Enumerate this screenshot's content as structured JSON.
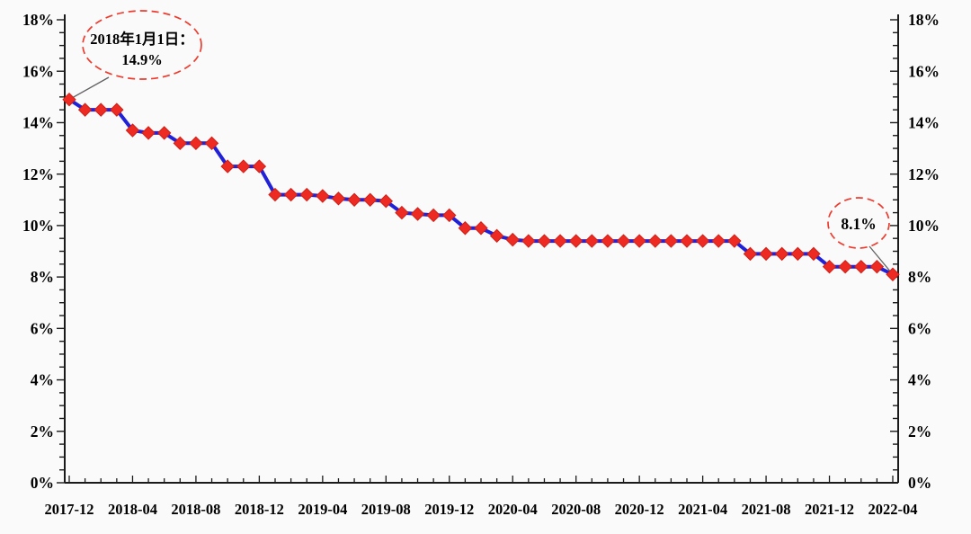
{
  "chart_data": {
    "type": "line",
    "title": "",
    "x": [
      "2017-12",
      "2018-01",
      "2018-02",
      "2018-03",
      "2018-04",
      "2018-05",
      "2018-06",
      "2018-07",
      "2018-08",
      "2018-09",
      "2018-10",
      "2018-11",
      "2018-12",
      "2019-01",
      "2019-02",
      "2019-03",
      "2019-04",
      "2019-05",
      "2019-06",
      "2019-07",
      "2019-08",
      "2019-09",
      "2019-10",
      "2019-11",
      "2019-12",
      "2020-01",
      "2020-02",
      "2020-03",
      "2020-04",
      "2020-05",
      "2020-06",
      "2020-07",
      "2020-08",
      "2020-09",
      "2020-10",
      "2020-11",
      "2020-12",
      "2021-01",
      "2021-02",
      "2021-03",
      "2021-04",
      "2021-05",
      "2021-06",
      "2021-07",
      "2021-08",
      "2021-09",
      "2021-10",
      "2021-11",
      "2021-12",
      "2022-01",
      "2022-02",
      "2022-03",
      "2022-04"
    ],
    "values": [
      14.9,
      14.5,
      14.5,
      14.5,
      13.7,
      13.6,
      13.6,
      13.2,
      13.2,
      13.2,
      12.3,
      12.3,
      12.3,
      11.2,
      11.2,
      11.2,
      11.15,
      11.05,
      11.0,
      11.0,
      10.95,
      10.5,
      10.45,
      10.4,
      10.4,
      9.9,
      9.9,
      9.6,
      9.45,
      9.4,
      9.4,
      9.4,
      9.4,
      9.4,
      9.4,
      9.4,
      9.4,
      9.4,
      9.4,
      9.4,
      9.4,
      9.4,
      9.4,
      8.9,
      8.9,
      8.9,
      8.9,
      8.9,
      8.4,
      8.4,
      8.4,
      8.4,
      8.1
    ],
    "x_tick_labels": [
      "2017-12",
      "2018-04",
      "2018-08",
      "2018-12",
      "2019-04",
      "2019-08",
      "2019-12",
      "2020-04",
      "2020-08",
      "2020-12",
      "2021-04",
      "2021-08",
      "2021-12",
      "2022-04"
    ],
    "x_major_every": 4,
    "ylim": [
      0,
      18
    ],
    "y_axis": {
      "major_step": 2,
      "minor_step": 0.5,
      "tick_label_suffix": "%",
      "labels": [
        "0%",
        "2%",
        "4%",
        "6%",
        "8%",
        "10%",
        "12%",
        "14%",
        "16%",
        "18%"
      ],
      "mirrored_right_axis": true
    },
    "grid": false,
    "legend_position": "none",
    "annotations": [
      {
        "lines": [
          "2018年1月1日：",
          "14.9%"
        ],
        "target_month": "2017-12",
        "target_value": 14.9
      },
      {
        "lines": [
          "8.1%"
        ],
        "target_month": "2022-04",
        "target_value": 8.1
      }
    ],
    "colors": {
      "line": "#2121d8",
      "marker_fill": "#ee2b22",
      "marker_edge": "#d11d15",
      "annotation_outline": "#ee3b2e",
      "leader_line": "#606060",
      "axis": "#1a1a1a",
      "label_text": "#000000",
      "background": "#fafafa"
    }
  }
}
